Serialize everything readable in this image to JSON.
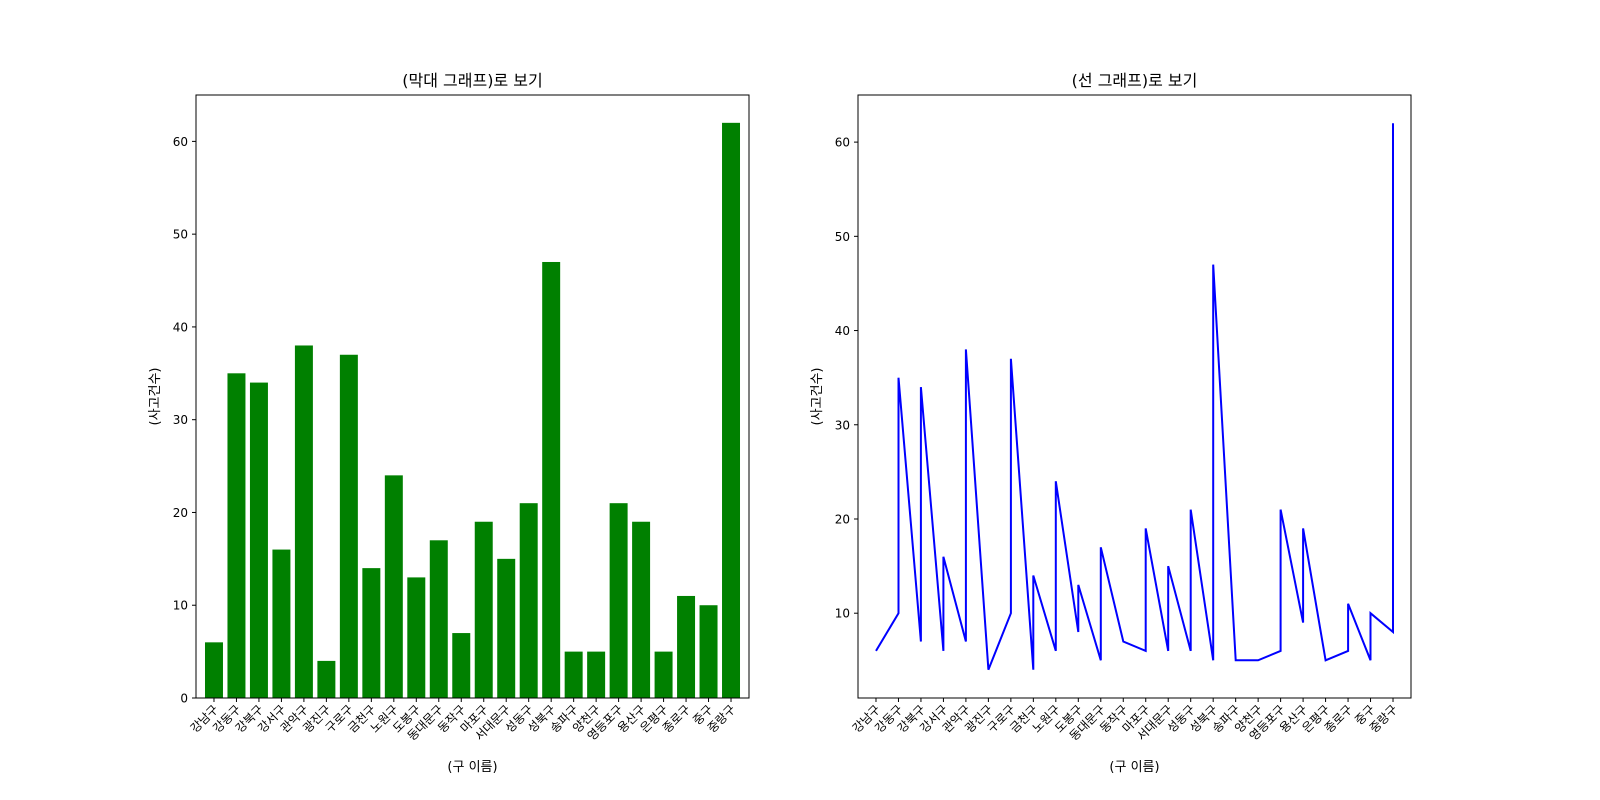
{
  "chart_data": [
    {
      "type": "bar",
      "title": "(막대 그래프)로 보기",
      "xlabel": "(구 이름)",
      "ylabel": "(사고건수)",
      "ylim": [
        0,
        65
      ],
      "yticks": [
        0,
        10,
        20,
        30,
        40,
        50,
        60
      ],
      "grid": false,
      "color": "#008000",
      "categories": [
        "강남구",
        "강동구",
        "강북구",
        "강서구",
        "관악구",
        "광진구",
        "구로구",
        "금천구",
        "노원구",
        "도봉구",
        "동대문구",
        "동작구",
        "마포구",
        "서대문구",
        "성동구",
        "성북구",
        "송파구",
        "양천구",
        "영등포구",
        "용산구",
        "은평구",
        "종로구",
        "중구",
        "중랑구"
      ],
      "values": [
        6,
        35,
        34,
        16,
        38,
        4,
        37,
        14,
        24,
        13,
        17,
        7,
        19,
        15,
        21,
        47,
        5,
        5,
        21,
        19,
        5,
        11,
        10,
        62
      ]
    },
    {
      "type": "line",
      "title": "(선 그래프)로 보기",
      "xlabel": "(구 이름)",
      "ylabel": "(사고건수)",
      "ylim": [
        1,
        65
      ],
      "yticks": [
        10,
        20,
        30,
        40,
        50,
        60
      ],
      "grid": false,
      "color": "#0000ff",
      "categories": [
        "강남구",
        "강동구",
        "강북구",
        "강서구",
        "관악구",
        "광진구",
        "구로구",
        "금천구",
        "노원구",
        "도봉구",
        "동대문구",
        "동작구",
        "마포구",
        "서대문구",
        "성동구",
        "성북구",
        "송파구",
        "양천구",
        "영등포구",
        "용산구",
        "은평구",
        "종로구",
        "중구",
        "중랑구"
      ],
      "points": [
        [
          "강남구",
          6
        ],
        [
          "강동구",
          10
        ],
        [
          "강동구",
          35
        ],
        [
          "강북구",
          7
        ],
        [
          "강북구",
          34
        ],
        [
          "강서구",
          6
        ],
        [
          "강서구",
          16
        ],
        [
          "관악구",
          7
        ],
        [
          "관악구",
          38
        ],
        [
          "광진구",
          4
        ],
        [
          "구로구",
          10
        ],
        [
          "구로구",
          37
        ],
        [
          "금천구",
          4
        ],
        [
          "금천구",
          14
        ],
        [
          "노원구",
          6
        ],
        [
          "노원구",
          24
        ],
        [
          "도봉구",
          8
        ],
        [
          "도봉구",
          13
        ],
        [
          "동대문구",
          5
        ],
        [
          "동대문구",
          17
        ],
        [
          "동작구",
          7
        ],
        [
          "마포구",
          6
        ],
        [
          "마포구",
          19
        ],
        [
          "서대문구",
          6
        ],
        [
          "서대문구",
          15
        ],
        [
          "성동구",
          6
        ],
        [
          "성동구",
          21
        ],
        [
          "성북구",
          5
        ],
        [
          "성북구",
          47
        ],
        [
          "송파구",
          5
        ],
        [
          "양천구",
          5
        ],
        [
          "영등포구",
          6
        ],
        [
          "영등포구",
          21
        ],
        [
          "용산구",
          9
        ],
        [
          "용산구",
          19
        ],
        [
          "은평구",
          5
        ],
        [
          "종로구",
          6
        ],
        [
          "종로구",
          11
        ],
        [
          "중구",
          5
        ],
        [
          "중구",
          10
        ],
        [
          "중랑구",
          8
        ],
        [
          "중랑구",
          62
        ]
      ]
    }
  ]
}
